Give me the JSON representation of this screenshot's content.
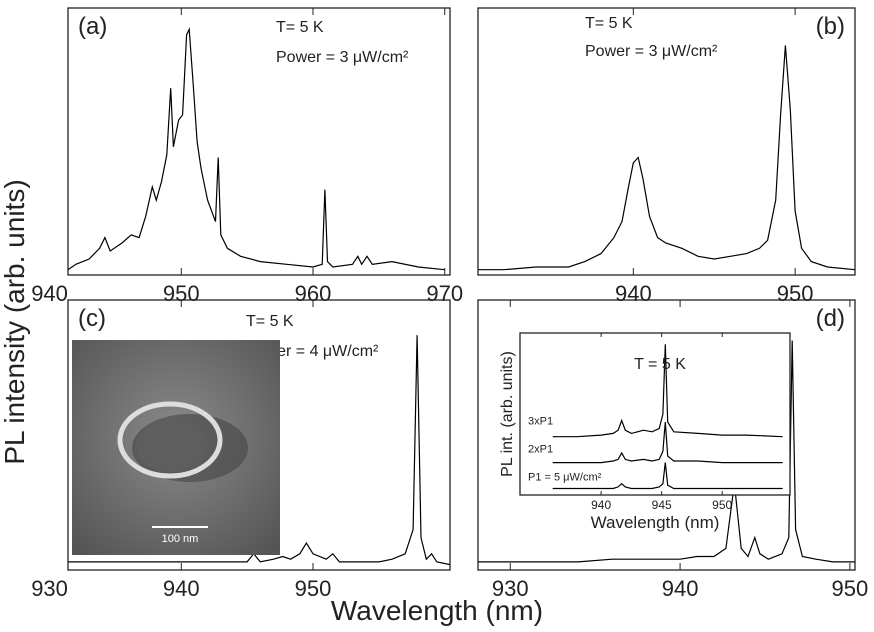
{
  "y_label": "PL intensity (arb. units)",
  "x_label": "Wavelength (nm)",
  "chart_data": [
    {
      "type": "line",
      "label": "(a)",
      "annotations": [
        "T= 5 K",
        "Power = 3 μW/cm²"
      ],
      "xlim": [
        941.4,
        970.4
      ],
      "xticks": [
        940,
        950,
        960,
        970
      ],
      "ylim": [
        0,
        100
      ],
      "color": "#000000",
      "x": [
        941.4,
        942,
        943,
        943.8,
        944.2,
        944.6,
        945.5,
        946.2,
        946.8,
        947.3,
        947.8,
        948.1,
        948.5,
        948.9,
        949.2,
        949.4,
        949.8,
        950.1,
        950.4,
        950.6,
        950.9,
        951.2,
        951.5,
        952,
        952.6,
        952.8,
        953,
        953.5,
        954.5,
        956,
        958,
        960,
        960.7,
        960.9,
        961.1,
        961.5,
        963,
        963.4,
        963.7,
        964.1,
        964.5,
        966,
        968,
        970
      ],
      "values": [
        2,
        4,
        6,
        10,
        14,
        9,
        12,
        15,
        14,
        22,
        33,
        28,
        35,
        45,
        70,
        48,
        58,
        60,
        90,
        92,
        72,
        50,
        40,
        28,
        20,
        44,
        15,
        10,
        7,
        5,
        4,
        3,
        4,
        32,
        5,
        3,
        4,
        7,
        4,
        7,
        4,
        5,
        3,
        2
      ]
    },
    {
      "type": "line",
      "label": "(b)",
      "annotations": [
        "T= 5 K",
        "Power = 3 μW/cm²"
      ],
      "xlim": [
        930.4,
        953.7
      ],
      "xticks": [
        940,
        950
      ],
      "ylim": [
        0,
        100
      ],
      "color": "#000000",
      "x": [
        930.4,
        932,
        934,
        936,
        937,
        938,
        938.8,
        939.3,
        939.7,
        940,
        940.3,
        940.6,
        941,
        941.5,
        942,
        943,
        944,
        945,
        946,
        947,
        947.8,
        948.3,
        948.8,
        949.1,
        949.4,
        949.7,
        950,
        950.4,
        951,
        952,
        953.7
      ],
      "values": [
        2,
        2,
        3,
        3,
        5,
        8,
        14,
        20,
        33,
        42,
        44,
        36,
        22,
        14,
        12,
        10,
        7,
        6,
        7,
        8,
        10,
        13,
        28,
        60,
        86,
        62,
        24,
        10,
        5,
        3,
        2
      ]
    },
    {
      "type": "line",
      "label": "(c)",
      "annotations": [
        "T= 5 K",
        "Power = 4 μW/cm²"
      ],
      "image_label": "100 nm",
      "xlim": [
        931.4,
        960.4
      ],
      "xticks": [
        930,
        940,
        950
      ],
      "ylim": [
        0,
        100
      ],
      "color": "#000000",
      "x": [
        931.4,
        935,
        940,
        943,
        945,
        945.5,
        946,
        947,
        947.7,
        948.3,
        949,
        949.5,
        950,
        951,
        951.5,
        952,
        953,
        954,
        955,
        956,
        957,
        957.6,
        957.9,
        958.2,
        958.6,
        959,
        959.4,
        960.4
      ],
      "values": [
        3,
        3,
        3,
        3,
        3,
        6,
        3,
        4,
        5,
        4,
        6,
        10,
        6,
        4,
        6,
        3,
        3,
        3,
        3,
        4,
        6,
        15,
        87,
        12,
        4,
        6,
        3,
        2
      ]
    },
    {
      "type": "line",
      "label": "(d)",
      "xlim": [
        928.1,
        950.3
      ],
      "xticks": [
        930,
        940,
        950
      ],
      "ylim": [
        0,
        100
      ],
      "color": "#000000",
      "x": [
        928.1,
        930,
        932,
        934,
        936,
        938,
        940,
        941,
        942,
        942.7,
        943.2,
        943.6,
        944,
        944.4,
        944.7,
        945.2,
        946,
        946.4,
        946.6,
        946.8,
        947.2,
        948,
        949,
        950.3
      ],
      "values": [
        3,
        3,
        3,
        3,
        4,
        4,
        4,
        5,
        5,
        8,
        32,
        8,
        5,
        12,
        6,
        4,
        6,
        12,
        85,
        15,
        5,
        4,
        3,
        3
      ]
    },
    {
      "type": "line",
      "title": "T = 5 K",
      "x_label": "Wavelength (nm)",
      "y_label": "PL int. (arb. units)",
      "xlim": [
        933.3,
        955.6
      ],
      "xticks": [
        940,
        945,
        950
      ],
      "ylim": [
        0,
        100
      ],
      "x": [
        936,
        938,
        940,
        941,
        941.4,
        941.7,
        942,
        942.5,
        943.5,
        944.2,
        944.8,
        945.1,
        945.3,
        945.5,
        946,
        948,
        950,
        952,
        955
      ],
      "series": [
        {
          "name": "3xP1",
          "color": "#000000",
          "values": [
            36,
            36,
            37,
            38,
            40,
            46,
            40,
            38,
            40,
            39,
            41,
            50,
            93,
            45,
            39,
            38,
            37,
            37,
            36
          ]
        },
        {
          "name": "2xP1",
          "color": "#000000",
          "values": [
            20,
            20,
            20,
            21,
            22,
            26,
            22,
            21,
            22,
            21,
            22,
            27,
            45,
            24,
            21,
            21,
            20,
            20,
            20
          ]
        },
        {
          "name": "P1 = 5 μW/cm²",
          "color": "#000000",
          "values": [
            4,
            4,
            4,
            4,
            5,
            7,
            5,
            4,
            4,
            4,
            5,
            7,
            20,
            6,
            4,
            4,
            4,
            4,
            4
          ]
        }
      ]
    }
  ]
}
